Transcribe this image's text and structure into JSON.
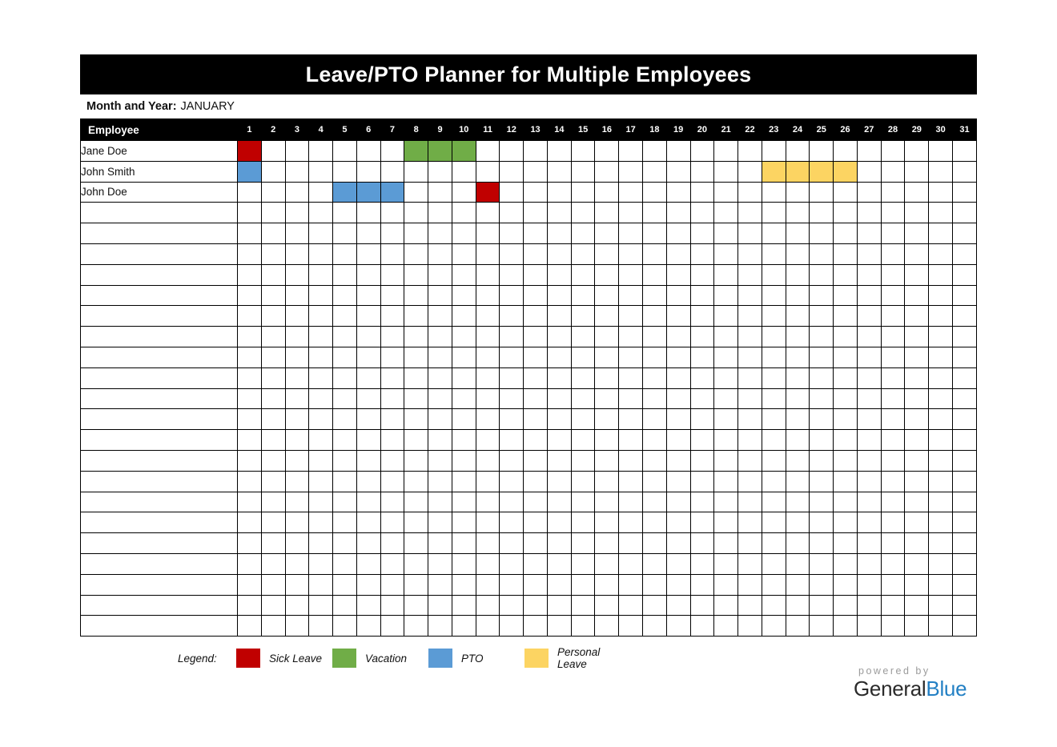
{
  "title": "Leave/PTO Planner for Multiple Employees",
  "month": {
    "label": "Month and Year:",
    "value": "JANUARY"
  },
  "table": {
    "employee_header": "Employee",
    "days": [
      1,
      2,
      3,
      4,
      5,
      6,
      7,
      8,
      9,
      10,
      11,
      12,
      13,
      14,
      15,
      16,
      17,
      18,
      19,
      20,
      21,
      22,
      23,
      24,
      25,
      26,
      27,
      28,
      29,
      30,
      31
    ],
    "total_rows": 24,
    "employees": [
      {
        "name": "Jane Doe",
        "leaves": {
          "1": "sick",
          "8": "vacation",
          "9": "vacation",
          "10": "vacation"
        }
      },
      {
        "name": "John Smith",
        "leaves": {
          "1": "pto",
          "23": "personal",
          "24": "personal",
          "25": "personal",
          "26": "personal"
        }
      },
      {
        "name": "John Doe",
        "leaves": {
          "5": "pto",
          "6": "pto",
          "7": "pto",
          "11": "sick"
        }
      }
    ]
  },
  "legend": {
    "label": "Legend:",
    "items": [
      {
        "type": "sick",
        "label": "Sick Leave"
      },
      {
        "type": "vacation",
        "label": "Vacation"
      },
      {
        "type": "pto",
        "label": "PTO"
      },
      {
        "type": "personal",
        "label": "Personal Leave"
      }
    ]
  },
  "colors": {
    "sick": "#C00000",
    "vacation": "#70AD47",
    "pto": "#5B9BD5",
    "personal": "#FCD462",
    "header_bg": "#000000",
    "brand_accent": "#2380C4"
  },
  "footer": {
    "powered_by": "powered by",
    "brand_primary": "General",
    "brand_accent": "Blue"
  }
}
